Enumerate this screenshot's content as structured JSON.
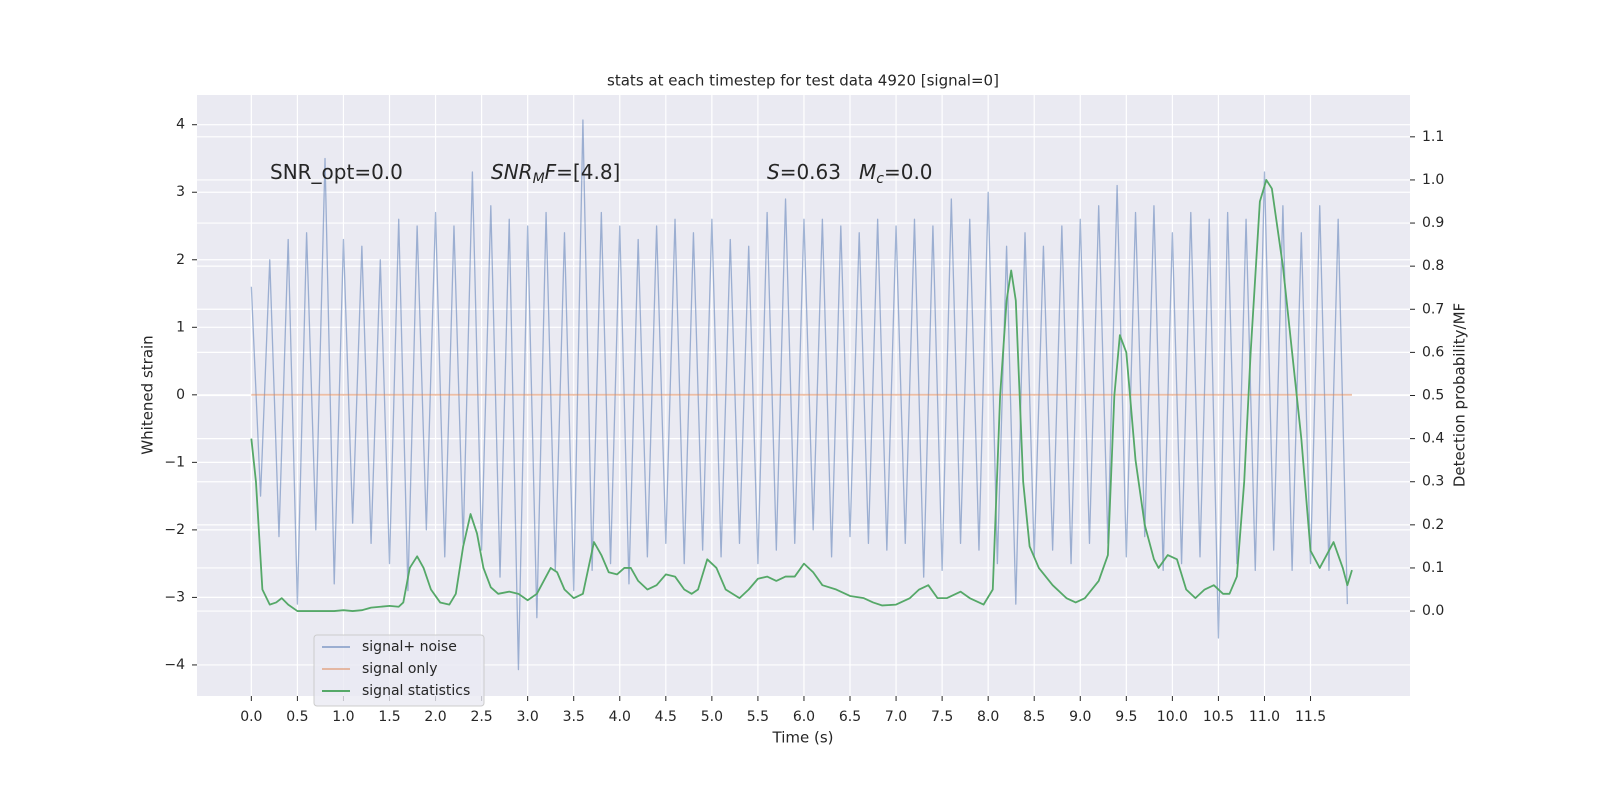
{
  "chart_data": {
    "type": "line",
    "title": "stats at each timestep for test data 4920 [signal=0]",
    "xlabel": "Time (s)",
    "ylabel": "Whitened strain",
    "y2label": "Detection probability/MF",
    "annotations": [
      {
        "parts": [
          {
            "text": "SNR_opt=0.0"
          }
        ]
      },
      {
        "parts": [
          {
            "text": "SNR",
            "style": "italic"
          },
          {
            "text": "M",
            "style": "italic-sub"
          },
          {
            "text": "F",
            "style": "italic"
          },
          {
            "text": "=[4.8]"
          }
        ]
      },
      {
        "parts": [
          {
            "text": "S",
            "style": "italic"
          },
          {
            "text": "=0.63"
          }
        ]
      },
      {
        "parts": [
          {
            "text": "M",
            "style": "italic"
          },
          {
            "text": "c",
            "style": "italic-sub"
          },
          {
            "text": "=0.0"
          }
        ]
      }
    ],
    "xlim": [
      -0.59,
      12.58
    ],
    "ylim": [
      -4.46,
      4.44
    ],
    "y2lim": [
      -0.197,
      1.197
    ],
    "xticks": [
      {
        "value": 0,
        "label": "0.0"
      },
      {
        "value": 0.5,
        "label": "0.5"
      },
      {
        "value": 1,
        "label": "1.0"
      },
      {
        "value": 1.5,
        "label": "1.5"
      },
      {
        "value": 2,
        "label": "2.0"
      },
      {
        "value": 2.5,
        "label": "2.5"
      },
      {
        "value": 3,
        "label": "3.0"
      },
      {
        "value": 3.5,
        "label": "3.5"
      },
      {
        "value": 4,
        "label": "4.0"
      },
      {
        "value": 4.5,
        "label": "4.5"
      },
      {
        "value": 5,
        "label": "5.0"
      },
      {
        "value": 5.5,
        "label": "5.5"
      },
      {
        "value": 6,
        "label": "6.0"
      },
      {
        "value": 6.5,
        "label": "6.5"
      },
      {
        "value": 7,
        "label": "7.0"
      },
      {
        "value": 7.5,
        "label": "7.5"
      },
      {
        "value": 8,
        "label": "8.0"
      },
      {
        "value": 8.5,
        "label": "8.5"
      },
      {
        "value": 9,
        "label": "9.0"
      },
      {
        "value": 9.5,
        "label": "9.5"
      },
      {
        "value": 10,
        "label": "10.0"
      },
      {
        "value": 10.5,
        "label": "10.5"
      },
      {
        "value": 11,
        "label": "11.0"
      },
      {
        "value": 11.5,
        "label": "11.5"
      }
    ],
    "yticks": [
      {
        "value": -4,
        "label": "−4"
      },
      {
        "value": -3,
        "label": "−3"
      },
      {
        "value": -2,
        "label": "−2"
      },
      {
        "value": -1,
        "label": "−1"
      },
      0,
      1,
      2,
      3,
      4
    ],
    "y2ticks": [
      {
        "value": 0,
        "label": "0.0"
      },
      {
        "value": 0.1,
        "label": "0.1"
      },
      {
        "value": 0.2,
        "label": "0.2"
      },
      {
        "value": 0.3,
        "label": "0.3"
      },
      {
        "value": 0.4,
        "label": "0.4"
      },
      {
        "value": 0.5,
        "label": "0.5"
      },
      {
        "value": 0.6,
        "label": "0.6"
      },
      {
        "value": 0.7,
        "label": "0.7"
      },
      {
        "value": 0.8,
        "label": "0.8"
      },
      {
        "value": 0.9,
        "label": "0.9"
      },
      {
        "value": 1,
        "label": "1.0"
      },
      {
        "value": 1.1,
        "label": "1.1"
      }
    ],
    "grid": true,
    "legend": "lower left",
    "series": [
      {
        "name": "signal+ noise",
        "color": "#4c72b0",
        "alpha": 0.5,
        "x": [
          0,
          0.1,
          0.2,
          0.3,
          0.4,
          0.5,
          0.6,
          0.7,
          0.8,
          0.9,
          1,
          1.1,
          1.2,
          1.3,
          1.4,
          1.5,
          1.6,
          1.7,
          1.8,
          1.9,
          2,
          2.1,
          2.2,
          2.3,
          2.4,
          2.5,
          2.6,
          2.7,
          2.8,
          2.9,
          3,
          3.1,
          3.2,
          3.3,
          3.4,
          3.5,
          3.6,
          3.7,
          3.8,
          3.9,
          4,
          4.1,
          4.2,
          4.3,
          4.4,
          4.5,
          4.6,
          4.7,
          4.8,
          4.9,
          5,
          5.1,
          5.2,
          5.3,
          5.4,
          5.5,
          5.6,
          5.7,
          5.8,
          5.9,
          6,
          6.1,
          6.2,
          6.3,
          6.4,
          6.5,
          6.6,
          6.7,
          6.8,
          6.9,
          7,
          7.1,
          7.2,
          7.3,
          7.4,
          7.5,
          7.6,
          7.7,
          7.8,
          7.9,
          8,
          8.1,
          8.2,
          8.3,
          8.4,
          8.5,
          8.6,
          8.7,
          8.8,
          8.9,
          9,
          9.1,
          9.2,
          9.3,
          9.4,
          9.5,
          9.6,
          9.7,
          9.8,
          9.9,
          10,
          10.1,
          10.2,
          10.3,
          10.4,
          10.5,
          10.6,
          10.7,
          10.8,
          10.9,
          11,
          11.1,
          11.2,
          11.3,
          11.4,
          11.5,
          11.6,
          11.7,
          11.8,
          11.9
        ],
        "values": [
          1.6,
          -1.5,
          2.0,
          -2.1,
          2.3,
          -3.1,
          2.4,
          -2.0,
          3.5,
          -2.8,
          2.3,
          -1.9,
          2.2,
          -2.2,
          2.0,
          -2.5,
          2.6,
          -2.9,
          2.5,
          -2.0,
          2.7,
          -2.4,
          2.5,
          -2.2,
          3.3,
          -2.3,
          2.8,
          -2.7,
          2.6,
          -4.07,
          2.5,
          -3.3,
          2.7,
          -2.6,
          2.4,
          -2.9,
          4.07,
          -2.6,
          2.7,
          -2.5,
          2.5,
          -2.8,
          2.3,
          -2.4,
          2.5,
          -2.2,
          2.6,
          -2.5,
          2.4,
          -2.3,
          2.6,
          -2.4,
          2.3,
          -2.2,
          2.2,
          -2.5,
          2.7,
          -2.3,
          2.9,
          -2.2,
          2.6,
          -2.0,
          2.6,
          -2.4,
          2.5,
          -2.1,
          2.4,
          -2.2,
          2.6,
          -2.3,
          2.5,
          -2.2,
          2.6,
          -2.7,
          2.5,
          -2.6,
          2.9,
          -2.2,
          2.6,
          -2.3,
          3.0,
          -2.5,
          2.2,
          -3.1,
          2.4,
          -2.4,
          2.2,
          -2.3,
          2.5,
          -2.5,
          2.6,
          -2.2,
          2.8,
          -2.2,
          3.1,
          -2.4,
          2.7,
          -2.1,
          2.8,
          -2.6,
          2.4,
          -2.5,
          2.7,
          -2.4,
          2.6,
          -3.6,
          2.7,
          -2.5,
          2.6,
          -2.6,
          3.3,
          -2.3,
          2.8,
          -2.6,
          2.4,
          -2.5,
          2.8,
          -2.6,
          2.6,
          -3.1
        ]
      },
      {
        "name": "signal only",
        "color": "#dd8452",
        "alpha": 0.5,
        "x": [
          0,
          11.95
        ],
        "values": [
          0,
          0
        ]
      },
      {
        "name": "signal statistics",
        "color": "#55a868",
        "axis": "y2",
        "x": [
          0,
          0.05,
          0.12,
          0.2,
          0.27,
          0.33,
          0.4,
          0.5,
          0.6,
          0.7,
          0.8,
          0.9,
          1.0,
          1.1,
          1.2,
          1.3,
          1.4,
          1.5,
          1.6,
          1.65,
          1.72,
          1.8,
          1.87,
          1.95,
          2.05,
          2.15,
          2.22,
          2.3,
          2.38,
          2.45,
          2.52,
          2.6,
          2.68,
          2.8,
          2.9,
          3.0,
          3.1,
          3.2,
          3.25,
          3.32,
          3.4,
          3.5,
          3.6,
          3.66,
          3.72,
          3.8,
          3.88,
          3.97,
          4.05,
          4.12,
          4.2,
          4.3,
          4.4,
          4.5,
          4.6,
          4.7,
          4.78,
          4.85,
          4.95,
          5.05,
          5.15,
          5.3,
          5.4,
          5.5,
          5.6,
          5.7,
          5.8,
          5.9,
          6.0,
          6.1,
          6.2,
          6.35,
          6.5,
          6.65,
          6.75,
          6.85,
          7.0,
          7.15,
          7.25,
          7.35,
          7.45,
          7.55,
          7.7,
          7.8,
          7.95,
          8.05,
          8.13,
          8.2,
          8.25,
          8.3,
          8.38,
          8.45,
          8.55,
          8.7,
          8.85,
          8.95,
          9.05,
          9.2,
          9.3,
          9.37,
          9.43,
          9.5,
          9.6,
          9.7,
          9.8,
          9.85,
          9.95,
          10.05,
          10.15,
          10.25,
          10.35,
          10.45,
          10.55,
          10.62,
          10.7,
          10.78,
          10.85,
          10.95,
          11.02,
          11.08,
          11.2,
          11.3,
          11.4,
          11.5,
          11.6,
          11.7,
          11.75,
          11.85,
          11.9,
          11.95
        ],
        "values": [
          0.4,
          0.3,
          0.05,
          0.015,
          0.02,
          0.03,
          0.015,
          0.0,
          0.0,
          0.0,
          0.0,
          0.0,
          0.002,
          0.0,
          0.002,
          0.008,
          0.01,
          0.012,
          0.01,
          0.02,
          0.1,
          0.127,
          0.1,
          0.05,
          0.02,
          0.015,
          0.04,
          0.15,
          0.225,
          0.18,
          0.1,
          0.055,
          0.04,
          0.045,
          0.04,
          0.025,
          0.04,
          0.08,
          0.1,
          0.09,
          0.05,
          0.03,
          0.04,
          0.1,
          0.16,
          0.13,
          0.09,
          0.085,
          0.1,
          0.1,
          0.07,
          0.05,
          0.06,
          0.085,
          0.08,
          0.05,
          0.04,
          0.05,
          0.12,
          0.1,
          0.05,
          0.03,
          0.05,
          0.075,
          0.08,
          0.07,
          0.08,
          0.08,
          0.11,
          0.09,
          0.06,
          0.05,
          0.035,
          0.03,
          0.02,
          0.013,
          0.015,
          0.03,
          0.05,
          0.06,
          0.03,
          0.03,
          0.045,
          0.03,
          0.015,
          0.05,
          0.5,
          0.72,
          0.79,
          0.72,
          0.3,
          0.15,
          0.1,
          0.06,
          0.03,
          0.02,
          0.03,
          0.07,
          0.13,
          0.5,
          0.64,
          0.6,
          0.35,
          0.2,
          0.12,
          0.1,
          0.13,
          0.12,
          0.05,
          0.03,
          0.05,
          0.06,
          0.04,
          0.04,
          0.08,
          0.3,
          0.6,
          0.95,
          1.0,
          0.98,
          0.8,
          0.6,
          0.4,
          0.14,
          0.1,
          0.14,
          0.16,
          0.1,
          0.06,
          0.095
        ]
      }
    ]
  }
}
